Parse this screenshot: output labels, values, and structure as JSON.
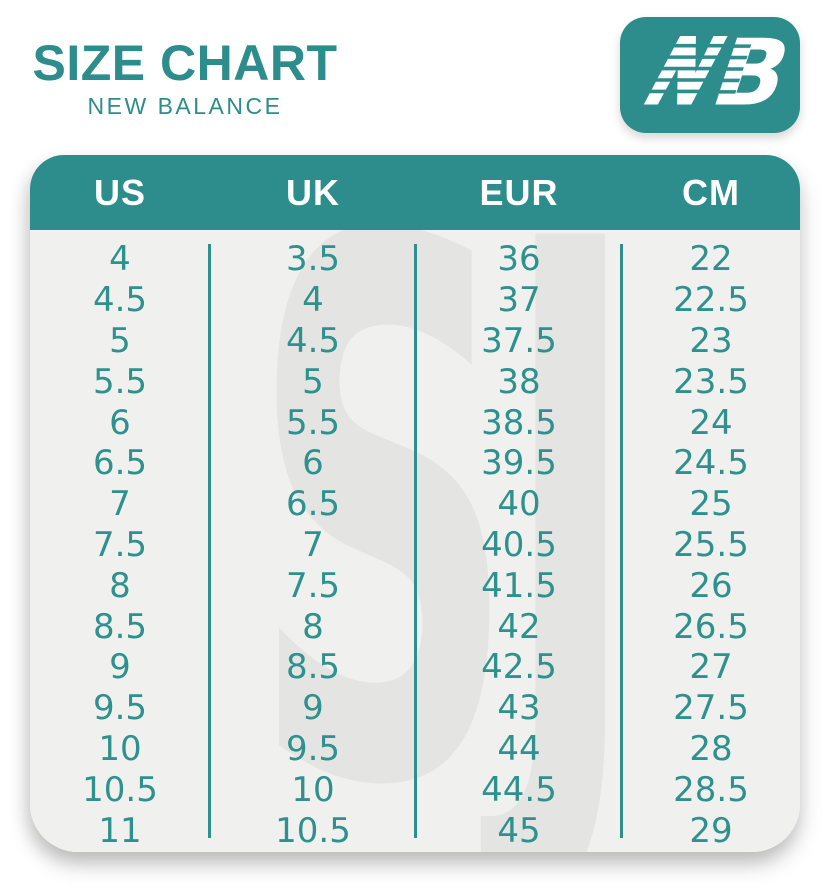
{
  "header": {
    "title": "SIZE CHART",
    "subtitle": "NEW BALANCE"
  },
  "logo": {
    "name": "new-balance-logo",
    "letters": "NB"
  },
  "watermark_text": "SJ",
  "colors": {
    "teal": "#2d8c8c",
    "digit_teal": "#2f918e",
    "divider_teal": "#2f8f8d",
    "table_body_bg": "#f0f1ef",
    "header_text": "#ffffff",
    "watermark_gray": "#e4e5e2",
    "page_bg": "#ffffff"
  },
  "chart_data": {
    "type": "table",
    "title": "SIZE CHART",
    "subtitle": "NEW BALANCE",
    "columns": [
      "US",
      "UK",
      "EUR",
      "CM"
    ],
    "rows": [
      [
        "4",
        "3.5",
        "36",
        "22"
      ],
      [
        "4.5",
        "4",
        "37",
        "22.5"
      ],
      [
        "5",
        "4.5",
        "37.5",
        "23"
      ],
      [
        "5.5",
        "5",
        "38",
        "23.5"
      ],
      [
        "6",
        "5.5",
        "38.5",
        "24"
      ],
      [
        "6.5",
        "6",
        "39.5",
        "24.5"
      ],
      [
        "7",
        "6.5",
        "40",
        "25"
      ],
      [
        "7.5",
        "7",
        "40.5",
        "25.5"
      ],
      [
        "8",
        "7.5",
        "41.5",
        "26"
      ],
      [
        "8.5",
        "8",
        "42",
        "26.5"
      ],
      [
        "9",
        "8.5",
        "42.5",
        "27"
      ],
      [
        "9.5",
        "9",
        "43",
        "27.5"
      ],
      [
        "10",
        "9.5",
        "44",
        "28"
      ],
      [
        "10.5",
        "10",
        "44.5",
        "28.5"
      ],
      [
        "11",
        "10.5",
        "45",
        "29"
      ]
    ]
  }
}
